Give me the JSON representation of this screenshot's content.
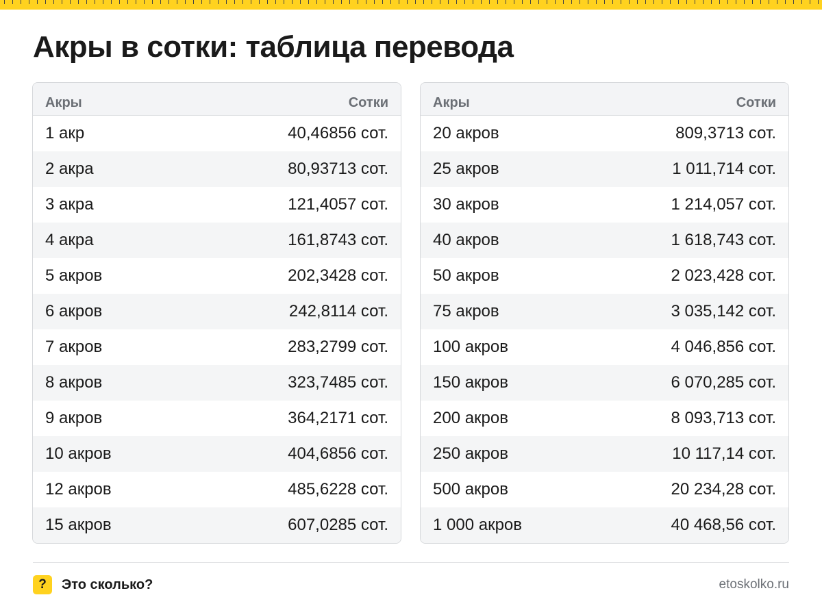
{
  "title": "Акры в сотки: таблица перевода",
  "tables": [
    {
      "header": {
        "left": "Акры",
        "right": "Сотки"
      },
      "rows": [
        {
          "acres": "1 акр",
          "sotki": "40,46856 сот."
        },
        {
          "acres": "2 акра",
          "sotki": "80,93713 сот."
        },
        {
          "acres": "3 акра",
          "sotki": "121,4057 сот."
        },
        {
          "acres": "4 акра",
          "sotki": "161,8743 сот."
        },
        {
          "acres": "5 акров",
          "sotki": "202,3428 сот."
        },
        {
          "acres": "6 акров",
          "sotki": "242,8114 сот."
        },
        {
          "acres": "7 акров",
          "sotki": "283,2799 сот."
        },
        {
          "acres": "8 акров",
          "sotki": "323,7485 сот."
        },
        {
          "acres": "9 акров",
          "sotki": "364,2171 сот."
        },
        {
          "acres": "10 акров",
          "sotki": "404,6856 сот."
        },
        {
          "acres": "12 акров",
          "sotki": "485,6228 сот."
        },
        {
          "acres": "15 акров",
          "sotki": "607,0285 сот."
        }
      ]
    },
    {
      "header": {
        "left": "Акры",
        "right": "Сотки"
      },
      "rows": [
        {
          "acres": "20 акров",
          "sotki": "809,3713 сот."
        },
        {
          "acres": "25 акров",
          "sotki": "1 011,714 сот."
        },
        {
          "acres": "30 акров",
          "sotki": "1 214,057 сот."
        },
        {
          "acres": "40 акров",
          "sotki": "1 618,743 сот."
        },
        {
          "acres": "50 акров",
          "sotki": "2 023,428 сот."
        },
        {
          "acres": "75 акров",
          "sotki": "3 035,142 сот."
        },
        {
          "acres": "100 акров",
          "sotki": "4 046,856 сот."
        },
        {
          "acres": "150 акров",
          "sotki": "6 070,285 сот."
        },
        {
          "acres": "200 акров",
          "sotki": "8 093,713 сот."
        },
        {
          "acres": "250 акров",
          "sotki": "10 117,14 сот."
        },
        {
          "acres": "500 акров",
          "sotki": "20 234,28 сот."
        },
        {
          "acres": "1 000 акров",
          "sotki": "40 468,56 сот."
        }
      ]
    }
  ],
  "footer": {
    "badge": "?",
    "brand": "Это сколько?",
    "site": "etoskolko.ru"
  },
  "colors": {
    "accent": "#ffd21f",
    "header_bg": "#f3f4f6",
    "stripe_bg": "#f4f5f6",
    "muted_text": "#6b6f75"
  }
}
